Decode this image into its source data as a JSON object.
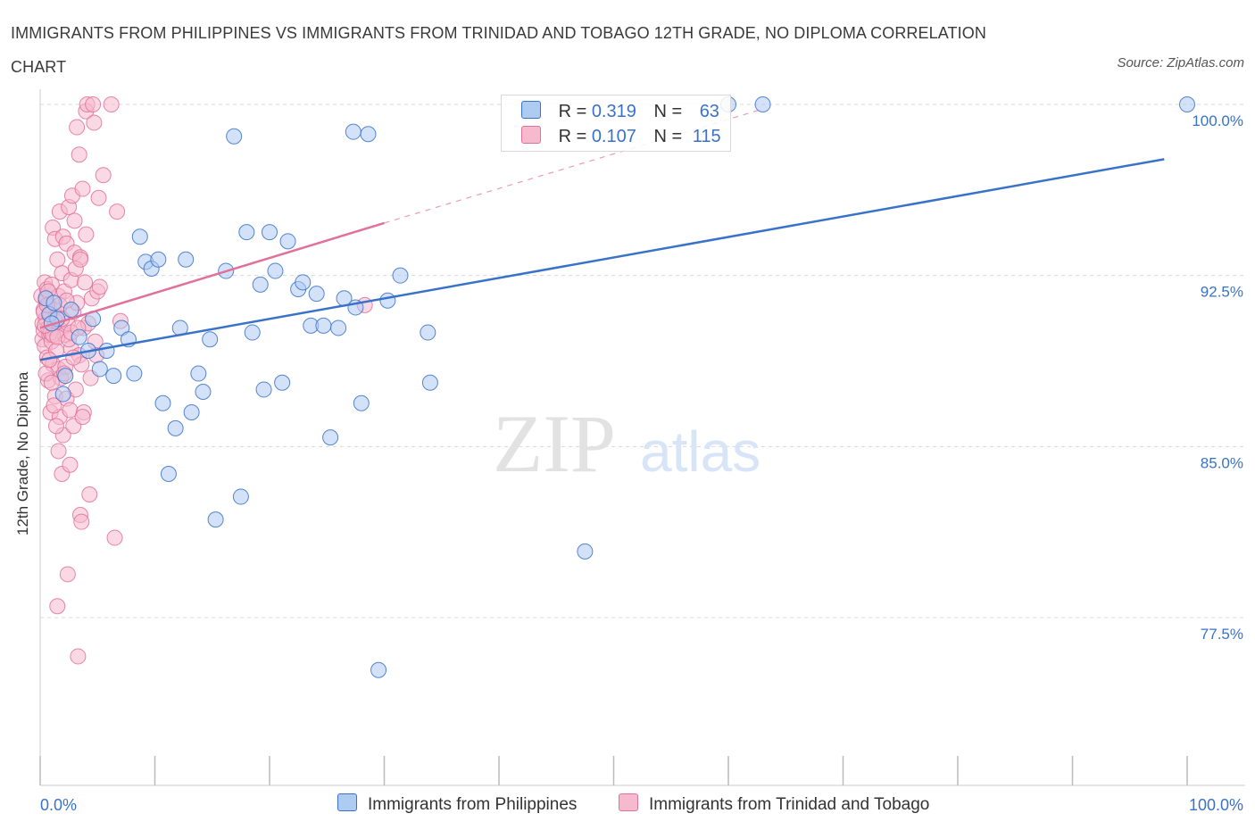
{
  "title": "IMMIGRANTS FROM PHILIPPINES VS IMMIGRANTS FROM TRINIDAD AND TOBAGO 12TH GRADE, NO DIPLOMA CORRELATION CHART",
  "source": "Source: ZipAtlas.com",
  "watermark": {
    "zip": "ZIP",
    "atlas": "atlas"
  },
  "colors": {
    "blue": "#3a72c9",
    "blue_fill": "#aecbf2",
    "pink": "#e0719a",
    "pink_fill": "#f6b9cd",
    "grid": "#d8d8d8",
    "axis_text": "#3a72c9"
  },
  "legend": {
    "rows": [
      {
        "r_label": "R =",
        "r_value": "0.319",
        "n_label": "N =",
        "n_value": "63"
      },
      {
        "r_label": "R =",
        "r_value": "0.107",
        "n_label": "N =",
        "n_value": "115"
      }
    ]
  },
  "chart_data": {
    "type": "scatter",
    "title": "IMMIGRANTS FROM PHILIPPINES VS IMMIGRANTS FROM TRINIDAD AND TOBAGO 12TH GRADE, NO DIPLOMA CORRELATION CHART",
    "xlabel": "",
    "ylabel": "12th Grade, No Diploma",
    "xlim": [
      0,
      100
    ],
    "ylim": [
      70.0,
      101.5
    ],
    "x_tick_labels": [
      "0.0%",
      "100.0%"
    ],
    "y_ticks": [
      77.5,
      85.0,
      92.5,
      100.0
    ],
    "y_tick_labels": [
      "77.5%",
      "85.0%",
      "92.5%",
      "100.0%"
    ],
    "grid": true,
    "series": [
      {
        "name": "Immigrants from Philippines",
        "color": "#3a72c9",
        "trend": {
          "x": [
            0,
            98
          ],
          "y": [
            88.8,
            97.6
          ],
          "dashed_to": null
        },
        "points": [
          [
            0.5,
            91.5
          ],
          [
            0.8,
            90.8
          ],
          [
            1.2,
            91.3
          ],
          [
            1.5,
            90.6
          ],
          [
            2.0,
            87.3
          ],
          [
            2.2,
            88.1
          ],
          [
            2.7,
            91.0
          ],
          [
            3.4,
            89.8
          ],
          [
            4.2,
            89.2
          ],
          [
            4.6,
            90.6
          ],
          [
            5.2,
            88.4
          ],
          [
            5.8,
            89.2
          ],
          [
            6.4,
            88.1
          ],
          [
            7.1,
            90.2
          ],
          [
            7.7,
            89.7
          ],
          [
            8.2,
            88.2
          ],
          [
            8.7,
            94.2
          ],
          [
            9.2,
            93.1
          ],
          [
            9.7,
            92.8
          ],
          [
            10.3,
            93.2
          ],
          [
            10.7,
            86.9
          ],
          [
            11.2,
            83.8
          ],
          [
            11.8,
            85.8
          ],
          [
            12.2,
            90.2
          ],
          [
            12.7,
            93.2
          ],
          [
            13.2,
            86.5
          ],
          [
            13.8,
            88.2
          ],
          [
            14.2,
            87.4
          ],
          [
            14.8,
            89.7
          ],
          [
            15.3,
            81.8
          ],
          [
            16.2,
            92.7
          ],
          [
            16.9,
            98.6
          ],
          [
            17.5,
            82.8
          ],
          [
            18.0,
            94.4
          ],
          [
            18.5,
            90.0
          ],
          [
            19.2,
            92.1
          ],
          [
            19.5,
            87.5
          ],
          [
            20.0,
            94.4
          ],
          [
            20.5,
            92.7
          ],
          [
            21.1,
            87.8
          ],
          [
            21.6,
            94.0
          ],
          [
            22.5,
            91.9
          ],
          [
            22.9,
            92.2
          ],
          [
            23.6,
            90.3
          ],
          [
            24.1,
            91.7
          ],
          [
            24.7,
            90.3
          ],
          [
            25.3,
            85.4
          ],
          [
            26.0,
            90.2
          ],
          [
            26.5,
            91.5
          ],
          [
            27.3,
            98.8
          ],
          [
            27.5,
            91.1
          ],
          [
            28.0,
            86.9
          ],
          [
            28.6,
            98.7
          ],
          [
            29.5,
            75.2
          ],
          [
            30.3,
            91.4
          ],
          [
            31.4,
            92.5
          ],
          [
            33.8,
            90.0
          ],
          [
            34.0,
            87.8
          ],
          [
            47.5,
            80.4
          ],
          [
            60.0,
            100.0
          ],
          [
            63.0,
            100.0
          ],
          [
            100.0,
            100.0
          ],
          [
            1.0,
            90.4
          ]
        ]
      },
      {
        "name": "Immigrants from Trinidad and Tobago",
        "color": "#e0719a",
        "trend": {
          "x": [
            0,
            30
          ],
          "y": [
            90.2,
            94.8
          ],
          "dashed_to": [
            63,
            99.8
          ]
        },
        "points": [
          [
            0.1,
            91.6
          ],
          [
            0.2,
            90.4
          ],
          [
            0.2,
            89.7
          ],
          [
            0.3,
            91.0
          ],
          [
            0.3,
            90.1
          ],
          [
            0.4,
            92.2
          ],
          [
            0.4,
            89.4
          ],
          [
            0.5,
            91.4
          ],
          [
            0.5,
            90.6
          ],
          [
            0.6,
            88.9
          ],
          [
            0.6,
            91.9
          ],
          [
            0.7,
            90.2
          ],
          [
            0.7,
            87.9
          ],
          [
            0.8,
            91.2
          ],
          [
            0.8,
            89.9
          ],
          [
            0.9,
            90.8
          ],
          [
            0.9,
            86.5
          ],
          [
            1.0,
            92.1
          ],
          [
            1.0,
            89.6
          ],
          [
            1.1,
            94.6
          ],
          [
            1.1,
            88.6
          ],
          [
            1.2,
            91.0
          ],
          [
            1.2,
            90.2
          ],
          [
            1.3,
            94.1
          ],
          [
            1.3,
            87.2
          ],
          [
            1.4,
            90.7
          ],
          [
            1.4,
            89.2
          ],
          [
            1.5,
            93.2
          ],
          [
            1.5,
            78.0
          ],
          [
            1.6,
            91.6
          ],
          [
            1.6,
            88.4
          ],
          [
            1.7,
            86.3
          ],
          [
            1.7,
            95.3
          ],
          [
            1.8,
            90.1
          ],
          [
            1.8,
            88.0
          ],
          [
            1.9,
            83.8
          ],
          [
            1.9,
            92.6
          ],
          [
            2.0,
            94.2
          ],
          [
            2.0,
            85.5
          ],
          [
            2.1,
            89.9
          ],
          [
            2.1,
            91.8
          ],
          [
            2.2,
            88.5
          ],
          [
            2.3,
            93.9
          ],
          [
            2.3,
            87.1
          ],
          [
            2.4,
            79.4
          ],
          [
            2.4,
            90.4
          ],
          [
            2.5,
            95.5
          ],
          [
            2.6,
            84.2
          ],
          [
            2.6,
            86.6
          ],
          [
            2.7,
            92.3
          ],
          [
            2.7,
            89.3
          ],
          [
            2.8,
            96.0
          ],
          [
            2.9,
            85.9
          ],
          [
            2.9,
            90.9
          ],
          [
            3.0,
            93.5
          ],
          [
            3.0,
            94.9
          ],
          [
            3.1,
            87.5
          ],
          [
            3.2,
            99.0
          ],
          [
            3.2,
            91.3
          ],
          [
            3.3,
            75.8
          ],
          [
            3.4,
            97.8
          ],
          [
            3.4,
            89.0
          ],
          [
            3.5,
            82.0
          ],
          [
            3.5,
            93.3
          ],
          [
            3.6,
            88.6
          ],
          [
            3.7,
            96.3
          ],
          [
            3.8,
            86.5
          ],
          [
            3.8,
            90.2
          ],
          [
            3.9,
            92.2
          ],
          [
            4.0,
            99.7
          ],
          [
            4.0,
            94.3
          ],
          [
            4.1,
            100.0
          ],
          [
            4.2,
            90.4
          ],
          [
            4.3,
            82.9
          ],
          [
            4.4,
            88.0
          ],
          [
            4.5,
            91.5
          ],
          [
            4.6,
            100.0
          ],
          [
            4.7,
            99.2
          ],
          [
            4.8,
            89.6
          ],
          [
            4.9,
            89.0
          ],
          [
            5.0,
            91.8
          ],
          [
            5.1,
            95.9
          ],
          [
            5.2,
            92.0
          ],
          [
            5.5,
            96.9
          ],
          [
            6.2,
            100.0
          ],
          [
            6.5,
            81.0
          ],
          [
            6.7,
            95.3
          ],
          [
            7.0,
            90.5
          ],
          [
            28.3,
            91.2
          ],
          [
            0.3,
            90.9
          ],
          [
            0.5,
            88.2
          ],
          [
            0.7,
            91.8
          ],
          [
            0.9,
            90.0
          ],
          [
            1.1,
            89.9
          ],
          [
            1.3,
            90.5
          ],
          [
            1.5,
            89.8
          ],
          [
            1.7,
            91.2
          ],
          [
            1.9,
            90.6
          ],
          [
            2.1,
            88.2
          ],
          [
            2.3,
            91.4
          ],
          [
            2.5,
            89.7
          ],
          [
            2.7,
            90.0
          ],
          [
            2.9,
            88.9
          ],
          [
            3.1,
            92.8
          ],
          [
            3.3,
            90.2
          ],
          [
            3.5,
            93.2
          ],
          [
            3.7,
            86.3
          ],
          [
            0.4,
            90.3
          ],
          [
            0.6,
            91.2
          ],
          [
            0.8,
            88.8
          ],
          [
            1.0,
            87.8
          ],
          [
            1.2,
            86.8
          ],
          [
            1.4,
            85.9
          ],
          [
            1.6,
            84.8
          ],
          [
            3.6,
            81.7
          ]
        ]
      }
    ]
  },
  "bottom_legend": {
    "items": [
      "Immigrants from Philippines",
      "Immigrants from Trinidad and Tobago"
    ]
  }
}
